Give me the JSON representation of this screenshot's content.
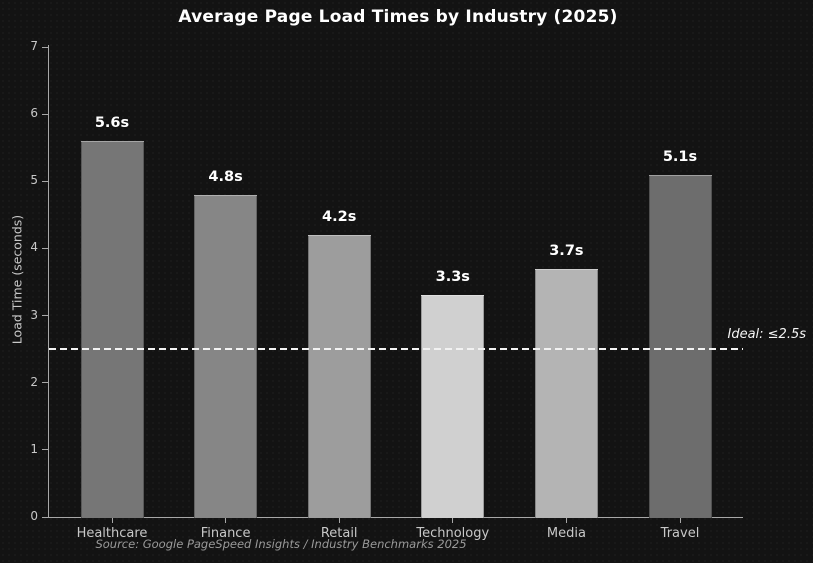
{
  "figure": {
    "background": "#131313",
    "spine_color": "#a8a8a8",
    "tick_label_color": "#c8c8c8"
  },
  "chart_data": {
    "type": "bar",
    "title": "Average Page Load Times by Industry (2025)",
    "categories": [
      "Healthcare",
      "Finance",
      "Retail",
      "Technology",
      "Media",
      "Travel"
    ],
    "values": [
      5.6,
      4.8,
      4.2,
      3.3,
      3.7,
      5.1
    ],
    "value_labels": [
      "5.6s",
      "4.8s",
      "4.2s",
      "3.3s",
      "3.7s",
      "5.1s"
    ],
    "bar_colors": [
      "#767676",
      "#868686",
      "#9d9d9d",
      "#d0d0d0",
      "#b4b4b4",
      "#6d6d6d"
    ],
    "xlabel": "",
    "ylabel": "Load Time (seconds)",
    "ylim": [
      0,
      7
    ],
    "yticks": [
      0,
      1,
      2,
      3,
      4,
      5,
      6,
      7
    ],
    "grid": false,
    "legend": null,
    "reference_line": {
      "value": 2.5,
      "label": "Ideal: ≤2.5s",
      "color": "#f5f5f5",
      "style": "dashed"
    },
    "source": "Source: Google PageSpeed Insights / Industry Benchmarks 2025"
  }
}
